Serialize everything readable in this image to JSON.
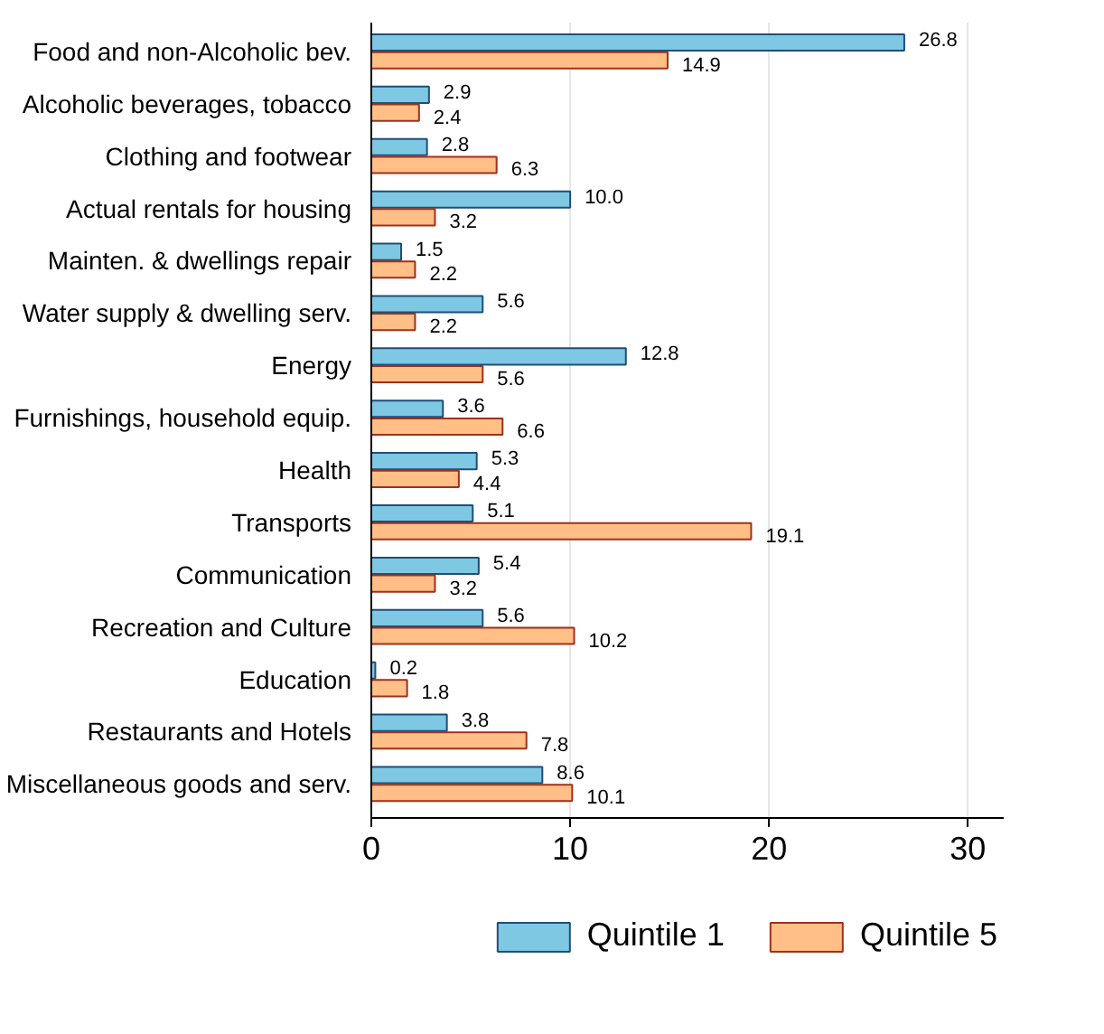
{
  "chart_data": {
    "type": "bar",
    "orientation": "horizontal",
    "categories": [
      "Food and non-Alcoholic bev.",
      "Alcoholic beverages, tobacco",
      "Clothing and footwear",
      "Actual rentals for housing",
      "Mainten. & dwellings repair",
      "Water supply & dwelling serv.",
      "Energy",
      "Furnishings, household equip.",
      "Health",
      "Transports",
      "Communication",
      "Recreation and Culture",
      "Education",
      "Restaurants and Hotels",
      "Miscellaneous goods and serv."
    ],
    "series": [
      {
        "name": "Quintile 1",
        "color": "#7ec8e3",
        "values": [
          26.8,
          2.9,
          2.8,
          10.0,
          1.5,
          5.6,
          12.8,
          3.6,
          5.3,
          5.1,
          5.4,
          5.6,
          0.2,
          3.8,
          8.6
        ],
        "value_labels": [
          "26.8",
          "2.9",
          "2.8",
          "10.0",
          "1.5",
          "5.6",
          "12.8",
          "3.6",
          "5.3",
          "5.1",
          "5.4",
          "5.6",
          "0.2",
          "3.8",
          "8.6"
        ]
      },
      {
        "name": "Quintile 5",
        "color": "#ffbf86",
        "values": [
          14.9,
          2.4,
          6.3,
          3.2,
          2.2,
          2.2,
          5.6,
          6.6,
          4.4,
          19.1,
          3.2,
          10.2,
          1.8,
          7.8,
          10.1
        ],
        "value_labels": [
          "14.9",
          "2.4",
          "6.3",
          "3.2",
          "2.2",
          "2.2",
          "5.6",
          "6.6",
          "4.4",
          "19.1",
          "3.2",
          "10.2",
          "1.8",
          "7.8",
          "10.1"
        ]
      }
    ],
    "xlim": [
      0,
      31.8
    ],
    "xticks": [
      0,
      10,
      20,
      30
    ],
    "grid": "x",
    "legend": "bottom"
  }
}
